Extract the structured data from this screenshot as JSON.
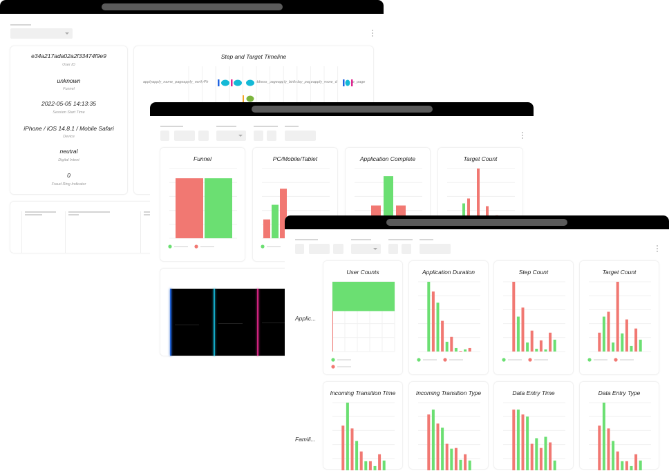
{
  "colors": {
    "green": "#6bdf72",
    "red": "#f17872",
    "blue": "#1f63e0",
    "cyan": "#14b9d6",
    "pink": "#e0268f",
    "orange": "#f5a623",
    "olive": "#7cb53d"
  },
  "session": {
    "user_id": "e34a217ada02a2f33474f9e9",
    "user_id_label": "User ID",
    "funnel": "unknown",
    "funnel_label": "Funnel",
    "start_time": "2022-05-05  14:13:35",
    "start_time_label": "Session Start Time",
    "device": "iPhone / iOS 14.8.1 / Mobile Safari",
    "device_label": "Device",
    "intent": "neutral",
    "intent_label": "Digital Intent",
    "fraud_ring": "0",
    "fraud_ring_label": "Fraud Ring Indicator"
  },
  "timeline": {
    "title": "Step and Target Timeline",
    "label_segments": [
      "applyapply_name_pageapply_verifyPh",
      "ddress_pageapply_birthday_pageapply_more_d",
      "e_page"
    ]
  },
  "row_labels": [
    "Applic...",
    "Famili..."
  ],
  "chart_data": [
    {
      "window": "middle",
      "title": "Funnel",
      "type": "bar",
      "bars": [
        [
          "red",
          86
        ],
        [
          "green",
          86
        ]
      ]
    },
    {
      "window": "middle",
      "title": "PC/Mobile/Tablet",
      "type": "bar",
      "bars": [
        [
          "red",
          27
        ],
        [
          "green",
          48
        ],
        [
          "red",
          71
        ]
      ]
    },
    {
      "window": "middle",
      "title": "Application Complete",
      "type": "bar",
      "bars": [
        [
          "red",
          47
        ],
        [
          "green",
          89
        ],
        [
          "red",
          47
        ]
      ]
    },
    {
      "window": "middle",
      "title": "Target Count",
      "type": "bar",
      "bars": [
        [
          "green",
          50
        ],
        [
          "red",
          57
        ],
        [
          "red",
          100
        ],
        [
          "red",
          46
        ],
        [
          "red",
          33
        ]
      ]
    },
    {
      "window": "front",
      "row": 0,
      "title": "User Counts",
      "type": "bar",
      "orientation": "horizontal",
      "bars": [
        [
          "green",
          100
        ],
        [
          "red",
          1
        ]
      ]
    },
    {
      "window": "front",
      "row": 0,
      "title": "Application Duration",
      "type": "bar",
      "bars": [
        [
          "green",
          100
        ],
        [
          "red",
          86
        ],
        [
          "green",
          70
        ],
        [
          "red",
          44
        ],
        [
          "green",
          14
        ],
        [
          "red",
          21
        ],
        [
          "green",
          5
        ],
        [
          "red",
          1
        ],
        [
          "green",
          3
        ],
        [
          "red",
          5
        ]
      ]
    },
    {
      "window": "front",
      "row": 0,
      "title": "Step Count",
      "type": "bar",
      "bars": [
        [
          "red",
          100
        ],
        [
          "green",
          50
        ],
        [
          "red",
          63
        ],
        [
          "green",
          13
        ],
        [
          "red",
          30
        ],
        [
          "green",
          4
        ],
        [
          "red",
          16
        ],
        [
          "green",
          3
        ],
        [
          "red",
          27
        ],
        [
          "green",
          17
        ]
      ]
    },
    {
      "window": "front",
      "row": 0,
      "title": "Target Count",
      "type": "bar",
      "bars": [
        [
          "red",
          27
        ],
        [
          "green",
          50
        ],
        [
          "red",
          57
        ],
        [
          "green",
          13
        ],
        [
          "red",
          100
        ],
        [
          "green",
          26
        ],
        [
          "red",
          46
        ],
        [
          "green",
          8
        ],
        [
          "red",
          33
        ],
        [
          "green",
          17
        ]
      ]
    },
    {
      "window": "front",
      "row": 1,
      "title": "Incoming Transition Time",
      "type": "bar",
      "bars": [
        [
          "red",
          67
        ],
        [
          "green",
          100
        ],
        [
          "red",
          63
        ],
        [
          "green",
          45
        ],
        [
          "red",
          30
        ],
        [
          "green",
          16
        ],
        [
          "red",
          16
        ],
        [
          "green",
          9
        ],
        [
          "red",
          26
        ],
        [
          "green",
          17
        ]
      ]
    },
    {
      "window": "front",
      "row": 1,
      "title": "Incoming Transition Type",
      "type": "bar",
      "bars": [
        [
          "red",
          83
        ],
        [
          "green",
          90
        ],
        [
          "red",
          70
        ],
        [
          "green",
          64
        ],
        [
          "red",
          41
        ],
        [
          "green",
          34
        ],
        [
          "red",
          35
        ],
        [
          "green",
          18
        ],
        [
          "red",
          26
        ],
        [
          "green",
          17
        ]
      ]
    },
    {
      "window": "front",
      "row": 1,
      "title": "Data Entry Time",
      "type": "bar",
      "bars": [
        [
          "red",
          90
        ],
        [
          "green",
          90
        ],
        [
          "red",
          83
        ],
        [
          "green",
          80
        ],
        [
          "red",
          41
        ],
        [
          "green",
          49
        ],
        [
          "red",
          35
        ],
        [
          "green",
          51
        ],
        [
          "red",
          43
        ],
        [
          "green",
          17
        ]
      ]
    },
    {
      "window": "front",
      "row": 1,
      "title": "Data Entry Type",
      "type": "bar",
      "bars": [
        [
          "red",
          67
        ],
        [
          "green",
          100
        ],
        [
          "red",
          63
        ],
        [
          "green",
          45
        ],
        [
          "red",
          30
        ],
        [
          "green",
          16
        ],
        [
          "red",
          16
        ],
        [
          "green",
          9
        ],
        [
          "red",
          26
        ],
        [
          "green",
          17
        ]
      ]
    }
  ]
}
